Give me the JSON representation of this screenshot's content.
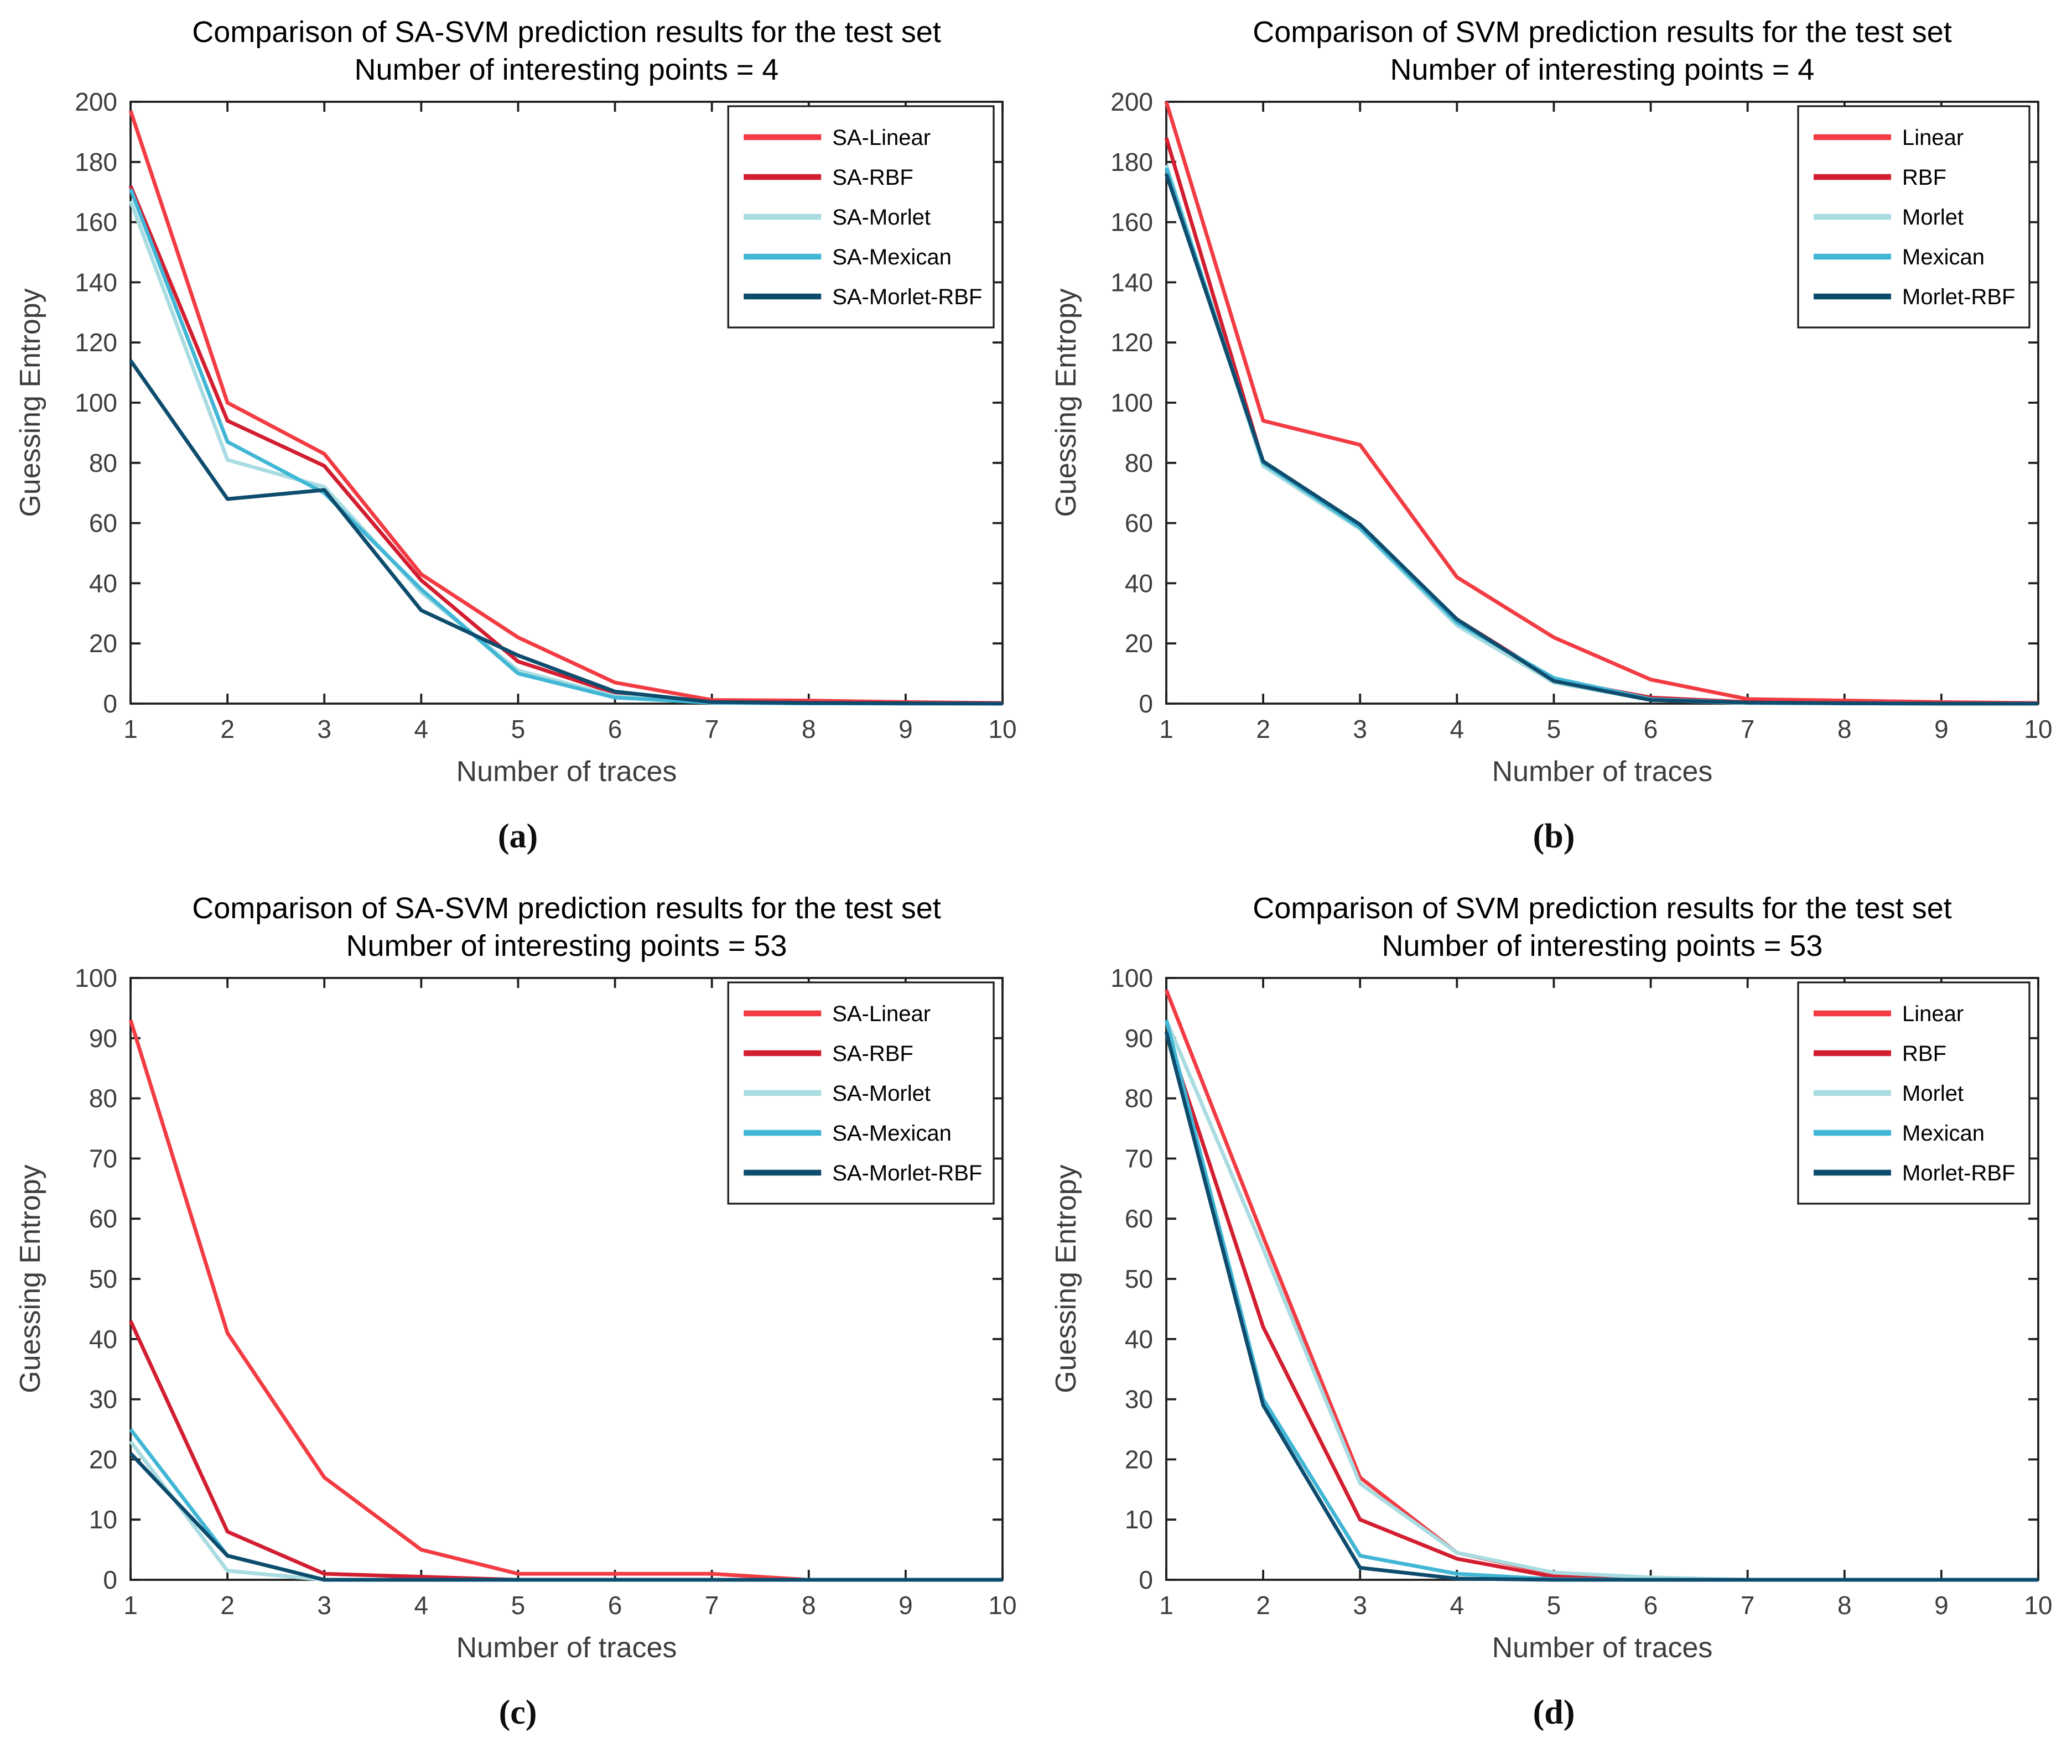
{
  "figure": {
    "background": "#ffffff",
    "axis_color": "#1f1f1f",
    "tick_label_color": "#3d3d3d",
    "title_color": "#000000",
    "legend_border_color": "#1a1a1a"
  },
  "chart_data": [
    {
      "type": "line",
      "caption": "(a)",
      "title_line1": "Comparison of SA-SVM prediction results for the test set",
      "title_line2": "Number of interesting points = 4",
      "xlabel": "Number of traces",
      "ylabel": "Guessing Entropy",
      "x": [
        1,
        2,
        3,
        4,
        5,
        6,
        7,
        8,
        9,
        10
      ],
      "xlim": [
        1,
        10
      ],
      "ylim": [
        0,
        200
      ],
      "ytick_step": 20,
      "grid": false,
      "legend_position": "top-right",
      "series": [
        {
          "name": "SA-Linear",
          "color": "#F23B42",
          "values": [
            197,
            100,
            83,
            43,
            22,
            7,
            1.2,
            1,
            0.5,
            0.2
          ]
        },
        {
          "name": "SA-RBF",
          "color": "#D21E30",
          "values": [
            172,
            94,
            79,
            41,
            14,
            3.5,
            0.6,
            0.3,
            0.2,
            0.1
          ]
        },
        {
          "name": "SA-Morlet",
          "color": "#A8DCE1",
          "values": [
            167,
            81,
            72,
            37,
            11,
            2.5,
            0.3,
            0.1,
            0.1,
            0
          ]
        },
        {
          "name": "SA-Mexican",
          "color": "#41B6D5",
          "values": [
            171,
            87,
            70,
            38,
            10,
            2,
            0.3,
            0.1,
            0,
            0
          ]
        },
        {
          "name": "SA-Morlet-RBF",
          "color": "#0E4C6E",
          "values": [
            114,
            68,
            71,
            31,
            16,
            4,
            0.5,
            0.2,
            0.1,
            0
          ]
        }
      ]
    },
    {
      "type": "line",
      "caption": "(b)",
      "title_line1": "Comparison of SVM prediction results for the test set",
      "title_line2": "Number of interesting points = 4",
      "xlabel": "Number of traces",
      "ylabel": "Guessing Entropy",
      "x": [
        1,
        2,
        3,
        4,
        5,
        6,
        7,
        8,
        9,
        10
      ],
      "xlim": [
        1,
        10
      ],
      "ylim": [
        0,
        200
      ],
      "ytick_step": 20,
      "grid": false,
      "legend_position": "top-right",
      "series": [
        {
          "name": "Linear",
          "color": "#F23B42",
          "values": [
            200,
            94,
            86,
            42,
            22,
            8,
            1.5,
            1,
            0.5,
            0.2
          ]
        },
        {
          "name": "RBF",
          "color": "#D21E30",
          "values": [
            188,
            80,
            59,
            28,
            8,
            2,
            0.5,
            0.2,
            0.1,
            0
          ]
        },
        {
          "name": "Morlet",
          "color": "#A8DCE1",
          "values": [
            179,
            79,
            58,
            26,
            7,
            1.2,
            0.2,
            0.1,
            0,
            0
          ]
        },
        {
          "name": "Mexican",
          "color": "#41B6D5",
          "values": [
            178,
            80,
            58.5,
            27,
            8.5,
            1.5,
            0.3,
            0.1,
            0,
            0
          ]
        },
        {
          "name": "Morlet-RBF",
          "color": "#0E4C6E",
          "values": [
            176,
            80.5,
            59.5,
            28,
            7.5,
            1.2,
            0.3,
            0.1,
            0,
            0
          ]
        }
      ]
    },
    {
      "type": "line",
      "caption": "(c)",
      "title_line1": "Comparison of SA-SVM prediction results for the test set",
      "title_line2": "Number of interesting points = 53",
      "xlabel": "Number of traces",
      "ylabel": "Guessing Entropy",
      "x": [
        1,
        2,
        3,
        4,
        5,
        6,
        7,
        8,
        9,
        10
      ],
      "xlim": [
        1,
        10
      ],
      "ylim": [
        0,
        100
      ],
      "ytick_step": 10,
      "grid": false,
      "legend_position": "top-right",
      "series": [
        {
          "name": "SA-Linear",
          "color": "#F23B42",
          "values": [
            93,
            41,
            17,
            5,
            1,
            1,
            1,
            0,
            0,
            0
          ]
        },
        {
          "name": "SA-RBF",
          "color": "#D21E30",
          "values": [
            43,
            8,
            1,
            0.5,
            0,
            0,
            0,
            0,
            0,
            0
          ]
        },
        {
          "name": "SA-Morlet",
          "color": "#A8DCE1",
          "values": [
            23,
            1.5,
            0,
            0,
            0,
            0,
            0,
            0,
            0,
            0
          ]
        },
        {
          "name": "SA-Mexican",
          "color": "#41B6D5",
          "values": [
            25,
            4,
            0,
            0,
            0,
            0,
            0,
            0,
            0,
            0
          ]
        },
        {
          "name": "SA-Morlet-RBF",
          "color": "#0E4C6E",
          "values": [
            21,
            4,
            0,
            0,
            0,
            0,
            0,
            0,
            0,
            0
          ]
        }
      ]
    },
    {
      "type": "line",
      "caption": "(d)",
      "title_line1": "Comparison of SVM prediction results for the test set",
      "title_line2": "Number of interesting points = 53",
      "xlabel": "Number of traces",
      "ylabel": "Guessing Entropy",
      "x": [
        1,
        2,
        3,
        4,
        5,
        6,
        7,
        8,
        9,
        10
      ],
      "xlim": [
        1,
        10
      ],
      "ylim": [
        0,
        100
      ],
      "ytick_step": 10,
      "grid": false,
      "legend_position": "top-right",
      "series": [
        {
          "name": "Linear",
          "color": "#F23B42",
          "values": [
            98,
            57,
            17,
            4.5,
            1,
            0.3,
            0,
            0,
            0,
            0
          ]
        },
        {
          "name": "RBF",
          "color": "#D21E30",
          "values": [
            91,
            42,
            10,
            3.5,
            0.5,
            0,
            0,
            0,
            0,
            0
          ]
        },
        {
          "name": "Morlet",
          "color": "#A8DCE1",
          "values": [
            93,
            55,
            16,
            4.5,
            1.2,
            0.4,
            0,
            0,
            0,
            0
          ]
        },
        {
          "name": "Mexican",
          "color": "#41B6D5",
          "values": [
            93,
            30,
            4,
            1,
            0.1,
            0,
            0,
            0,
            0,
            0
          ]
        },
        {
          "name": "Morlet-RBF",
          "color": "#0E4C6E",
          "values": [
            91,
            29,
            2,
            0.2,
            0,
            0,
            0,
            0,
            0,
            0
          ]
        }
      ]
    }
  ]
}
